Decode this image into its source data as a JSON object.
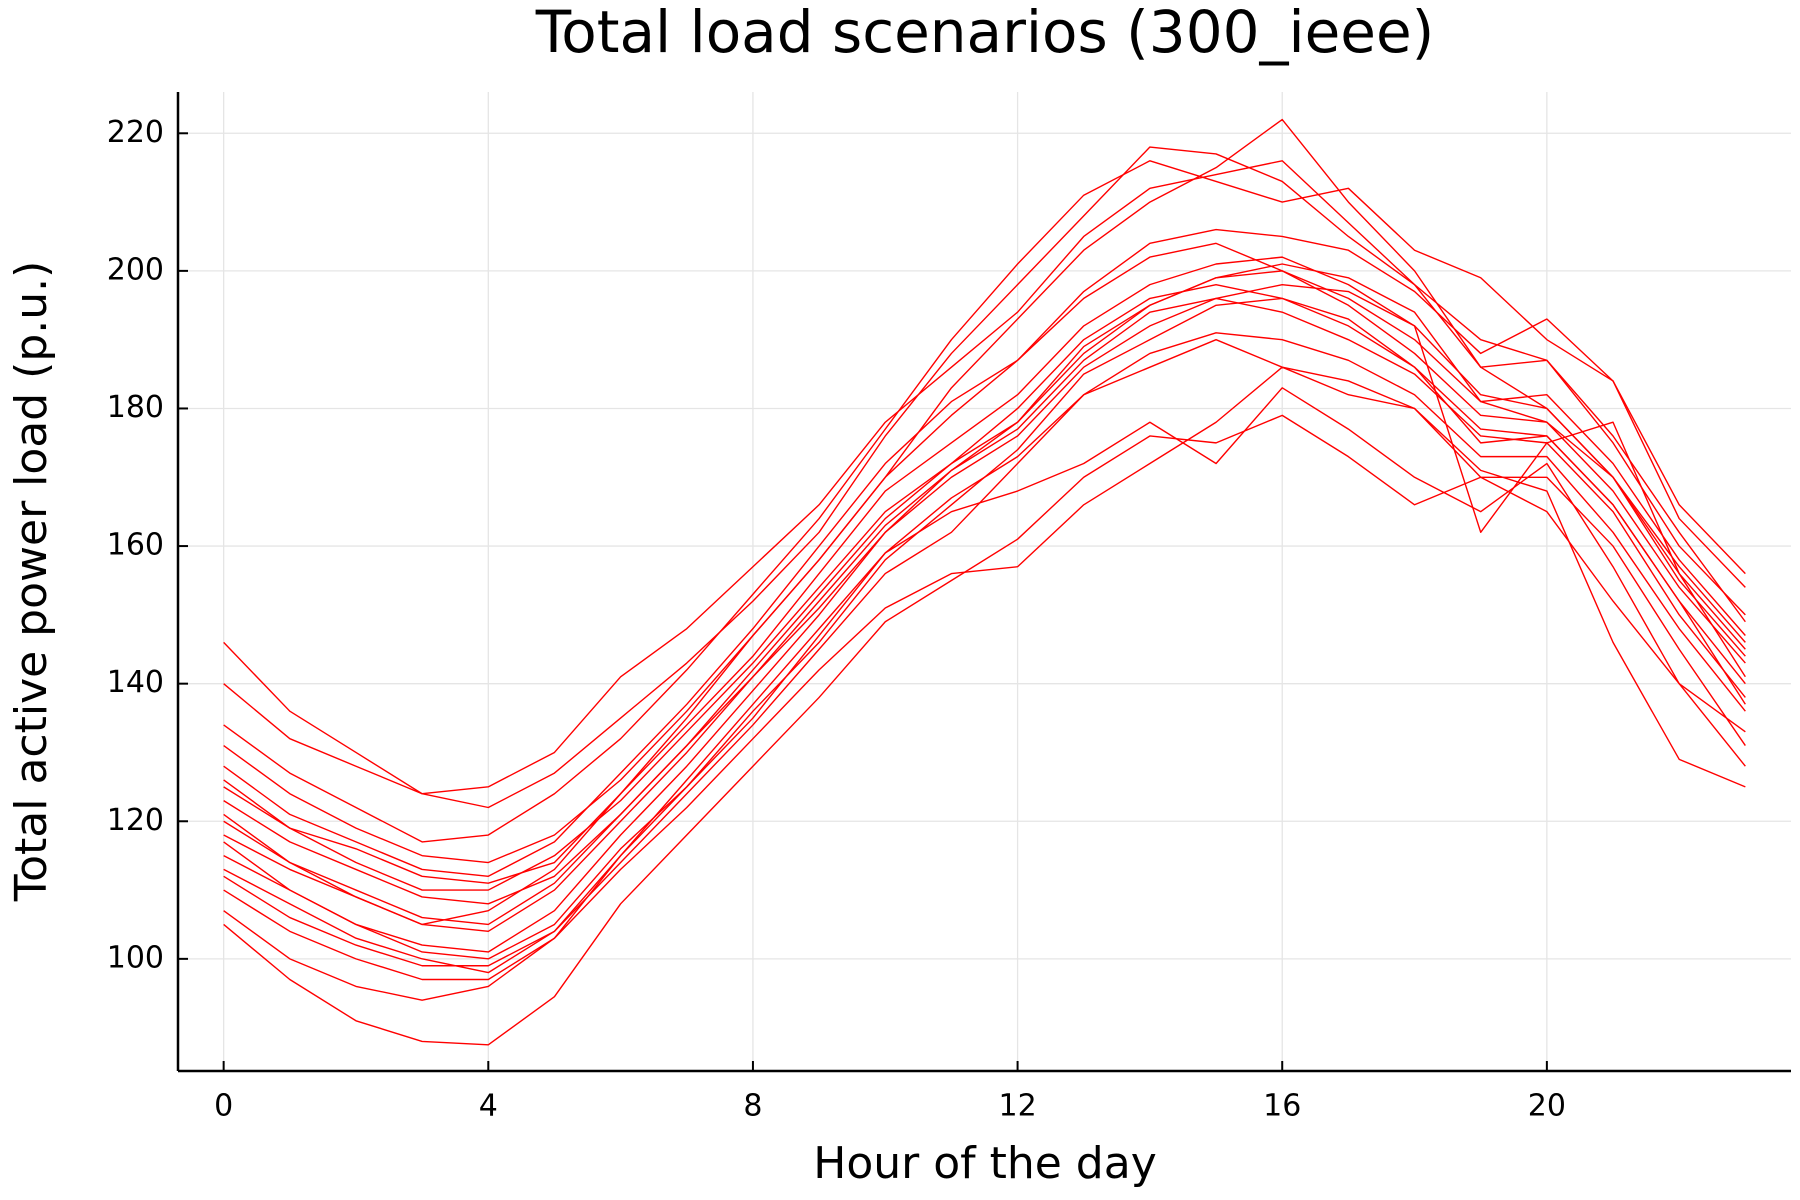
{
  "chart_data": {
    "type": "line",
    "title": "Total load scenarios (300_ieee)",
    "xlabel": "Hour of the day",
    "ylabel": "Total active power load (p.u.)",
    "x": [
      0,
      1,
      2,
      3,
      4,
      5,
      6,
      7,
      8,
      9,
      10,
      11,
      12,
      13,
      14,
      15,
      16,
      17,
      18,
      19,
      20,
      21,
      22,
      23
    ],
    "xlim": [
      -0.69,
      23.69
    ],
    "ylim": [
      83.7,
      226.0
    ],
    "xticks": [
      0,
      4,
      8,
      12,
      16,
      20
    ],
    "yticks": [
      100,
      120,
      140,
      160,
      180,
      200,
      220
    ],
    "grid": true,
    "color": "#ff0000",
    "series": [
      {
        "values": [
          146,
          136,
          130,
          124,
          125,
          130,
          141,
          148,
          157,
          166,
          178,
          186,
          194,
          205,
          212,
          214,
          216,
          207,
          198,
          190,
          187,
          176,
          162,
          149
        ]
      },
      {
        "values": [
          105,
          97,
          91,
          88,
          87.5,
          94.5,
          108,
          118,
          128,
          138,
          149,
          155,
          161,
          170,
          176,
          175,
          179,
          173,
          166,
          170,
          165,
          152,
          140,
          133
        ]
      },
      {
        "values": [
          118,
          113,
          109,
          105,
          107,
          113,
          124,
          135,
          147,
          158,
          170,
          183,
          193,
          203,
          210,
          215,
          222,
          210,
          200,
          186,
          180,
          170,
          156,
          145
        ]
      },
      {
        "values": [
          140,
          132,
          128,
          124,
          122,
          127,
          135,
          143,
          152,
          162,
          176,
          188,
          198,
          208,
          218,
          217,
          213,
          205,
          198,
          186,
          187,
          175,
          160,
          150
        ]
      },
      {
        "values": [
          131,
          124,
          119,
          115,
          114,
          118,
          126,
          136,
          147,
          158,
          170,
          179,
          187,
          196,
          202,
          204,
          200,
          196,
          190,
          181,
          182,
          172,
          158,
          147
        ]
      },
      {
        "values": [
          125,
          119,
          114,
          110,
          110,
          115,
          123,
          133,
          143,
          154,
          165,
          172,
          178,
          188,
          195,
          199,
          200,
          195,
          188,
          179,
          178,
          168,
          154,
          143
        ]
      },
      {
        "values": [
          120,
          114,
          110,
          106,
          105,
          111,
          121,
          131,
          142,
          153,
          164,
          172,
          180,
          190,
          196,
          198,
          196,
          192,
          186,
          177,
          176,
          166,
          152,
          140
        ]
      },
      {
        "values": [
          115,
          110,
          105,
          102,
          101,
          107,
          118,
          128,
          139,
          150,
          162,
          170,
          176,
          186,
          192,
          196,
          194,
          190,
          185,
          176,
          175,
          165,
          150,
          138
        ]
      },
      {
        "values": [
          110,
          104,
          100,
          97,
          97,
          103,
          115,
          126,
          137,
          148,
          159,
          167,
          173,
          182,
          188,
          191,
          190,
          187,
          182,
          173,
          173,
          162,
          148,
          136
        ]
      },
      {
        "values": [
          112,
          106,
          102,
          99,
          99,
          104,
          114,
          124,
          134,
          145,
          156,
          162,
          172,
          182,
          186,
          190,
          186,
          184,
          180,
          170,
          170,
          160,
          145,
          131
        ]
      },
      {
        "values": [
          117,
          110,
          105,
          101,
          100,
          105,
          116,
          125,
          135,
          147,
          159,
          165,
          168,
          172,
          178,
          172,
          183,
          177,
          170,
          165,
          172,
          157,
          140,
          128
        ]
      },
      {
        "values": [
          123,
          117,
          113,
          109,
          108,
          112,
          121,
          131,
          141,
          152,
          163,
          171,
          177,
          187,
          194,
          196,
          198,
          197,
          192,
          162,
          175,
          178,
          156,
          141
        ]
      },
      {
        "values": [
          128,
          121,
          117,
          113,
          112,
          117,
          127,
          137,
          148,
          160,
          172,
          181,
          187,
          197,
          204,
          206,
          205,
          203,
          197,
          188,
          193,
          184,
          164,
          154
        ]
      },
      {
        "values": [
          107,
          100,
          96,
          94,
          96,
          103,
          113,
          122,
          132,
          142,
          151,
          156,
          157,
          166,
          172,
          178,
          186,
          182,
          180,
          171,
          168,
          146,
          129,
          125
        ]
      },
      {
        "values": [
          121,
          114,
          109,
          105,
          104,
          110,
          120,
          130,
          141,
          151,
          162,
          171,
          178,
          189,
          195,
          199,
          201,
          199,
          194,
          181,
          178,
          170,
          155,
          144
        ]
      },
      {
        "values": [
          134,
          127,
          122,
          117,
          118,
          124,
          132,
          142,
          153,
          164,
          177,
          190,
          201,
          211,
          216,
          213,
          210,
          212,
          203,
          199,
          190,
          184,
          166,
          156
        ]
      },
      {
        "values": [
          113,
          108,
          103,
          100,
          98,
          104,
          115,
          125,
          136,
          146,
          158,
          166,
          174,
          185,
          190,
          195,
          196,
          193,
          186,
          175,
          176,
          166,
          152,
          137
        ]
      },
      {
        "values": [
          126,
          119,
          116,
          112,
          111,
          114,
          124,
          134,
          144,
          156,
          168,
          175,
          182,
          192,
          198,
          201,
          202,
          198,
          192,
          182,
          180,
          170,
          157,
          146
        ]
      }
    ]
  }
}
